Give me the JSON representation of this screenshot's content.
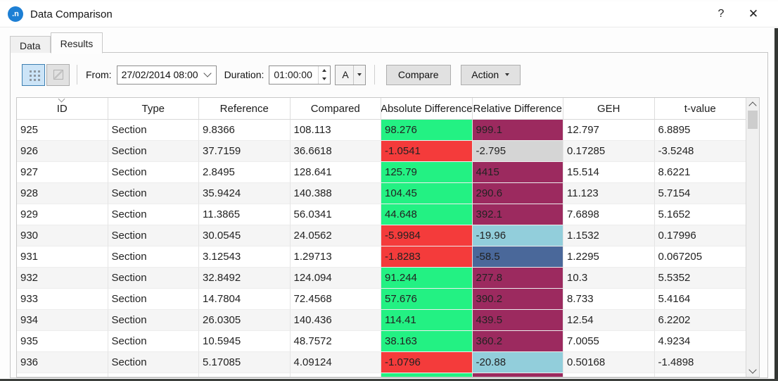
{
  "window": {
    "title": "Data Comparison",
    "icon_text": ".n",
    "help_glyph": "?",
    "close_glyph": "✕"
  },
  "tabs": [
    {
      "label": "Data",
      "active": false
    },
    {
      "label": "Results",
      "active": true
    }
  ],
  "toolbar": {
    "from_label": "From:",
    "from_value": "27/02/2014 08:00",
    "duration_label": "Duration:",
    "duration_value": "01:00:00",
    "series_selector_label": "A",
    "compare_label": "Compare",
    "action_label": "Action"
  },
  "table": {
    "columns": [
      "ID",
      "Type",
      "Reference",
      "Compared",
      "Absolute Difference",
      "Relative Difference",
      "GEH",
      "t-value"
    ],
    "sorted_column": "ID",
    "rows": [
      {
        "id": "925",
        "type": "Section",
        "reference": "9.8366",
        "compared": "108.113",
        "abs_diff": "98.276",
        "abs_color": "green",
        "rel_diff": "999.1",
        "rel_color": "maroon",
        "geh": "12.797",
        "t_value": "6.8895"
      },
      {
        "id": "926",
        "type": "Section",
        "reference": "37.7159",
        "compared": "36.6618",
        "abs_diff": "-1.0541",
        "abs_color": "red",
        "rel_diff": "-2.795",
        "rel_color": "gray",
        "geh": "0.17285",
        "t_value": "-3.5248"
      },
      {
        "id": "927",
        "type": "Section",
        "reference": "2.8495",
        "compared": "128.641",
        "abs_diff": "125.79",
        "abs_color": "green",
        "rel_diff": "4415",
        "rel_color": "maroon",
        "geh": "15.514",
        "t_value": "8.6221"
      },
      {
        "id": "928",
        "type": "Section",
        "reference": "35.9424",
        "compared": "140.388",
        "abs_diff": "104.45",
        "abs_color": "green",
        "rel_diff": "290.6",
        "rel_color": "maroon",
        "geh": "11.123",
        "t_value": "5.7154"
      },
      {
        "id": "929",
        "type": "Section",
        "reference": "11.3865",
        "compared": "56.0341",
        "abs_diff": "44.648",
        "abs_color": "green",
        "rel_diff": "392.1",
        "rel_color": "maroon",
        "geh": "7.6898",
        "t_value": "5.1652"
      },
      {
        "id": "930",
        "type": "Section",
        "reference": "30.0545",
        "compared": "24.0562",
        "abs_diff": "-5.9984",
        "abs_color": "red",
        "rel_diff": "-19.96",
        "rel_color": "lightblue",
        "geh": "1.1532",
        "t_value": "0.17996"
      },
      {
        "id": "931",
        "type": "Section",
        "reference": "3.12543",
        "compared": "1.29713",
        "abs_diff": "-1.8283",
        "abs_color": "red",
        "rel_diff": "-58.5",
        "rel_color": "slateblue",
        "geh": "1.2295",
        "t_value": "0.067205"
      },
      {
        "id": "932",
        "type": "Section",
        "reference": "32.8492",
        "compared": "124.094",
        "abs_diff": "91.244",
        "abs_color": "green",
        "rel_diff": "277.8",
        "rel_color": "maroon",
        "geh": "10.3",
        "t_value": "5.5352"
      },
      {
        "id": "933",
        "type": "Section",
        "reference": "14.7804",
        "compared": "72.4568",
        "abs_diff": "57.676",
        "abs_color": "green",
        "rel_diff": "390.2",
        "rel_color": "maroon",
        "geh": "8.733",
        "t_value": "5.4164"
      },
      {
        "id": "934",
        "type": "Section",
        "reference": "26.0305",
        "compared": "140.436",
        "abs_diff": "114.41",
        "abs_color": "green",
        "rel_diff": "439.5",
        "rel_color": "maroon",
        "geh": "12.54",
        "t_value": "6.2202"
      },
      {
        "id": "935",
        "type": "Section",
        "reference": "10.5945",
        "compared": "48.7572",
        "abs_diff": "38.163",
        "abs_color": "green",
        "rel_diff": "360.2",
        "rel_color": "maroon",
        "geh": "7.0055",
        "t_value": "4.9234"
      },
      {
        "id": "936",
        "type": "Section",
        "reference": "5.17085",
        "compared": "4.09124",
        "abs_diff": "-1.0796",
        "abs_color": "red",
        "rel_diff": "-20.88",
        "rel_color": "lightblue",
        "geh": "0.50168",
        "t_value": "-1.4898"
      }
    ],
    "partial_row": {
      "abs_color": "green",
      "rel_color": "maroon"
    }
  },
  "colors": {
    "green": "#23F183",
    "red": "#F43B3B",
    "maroon": "#9C2A5F",
    "lightblue": "#92CEDB",
    "slateblue": "#4A689A",
    "gray": "#D5D5D5",
    "accent_blue": "#1D7FD4"
  }
}
